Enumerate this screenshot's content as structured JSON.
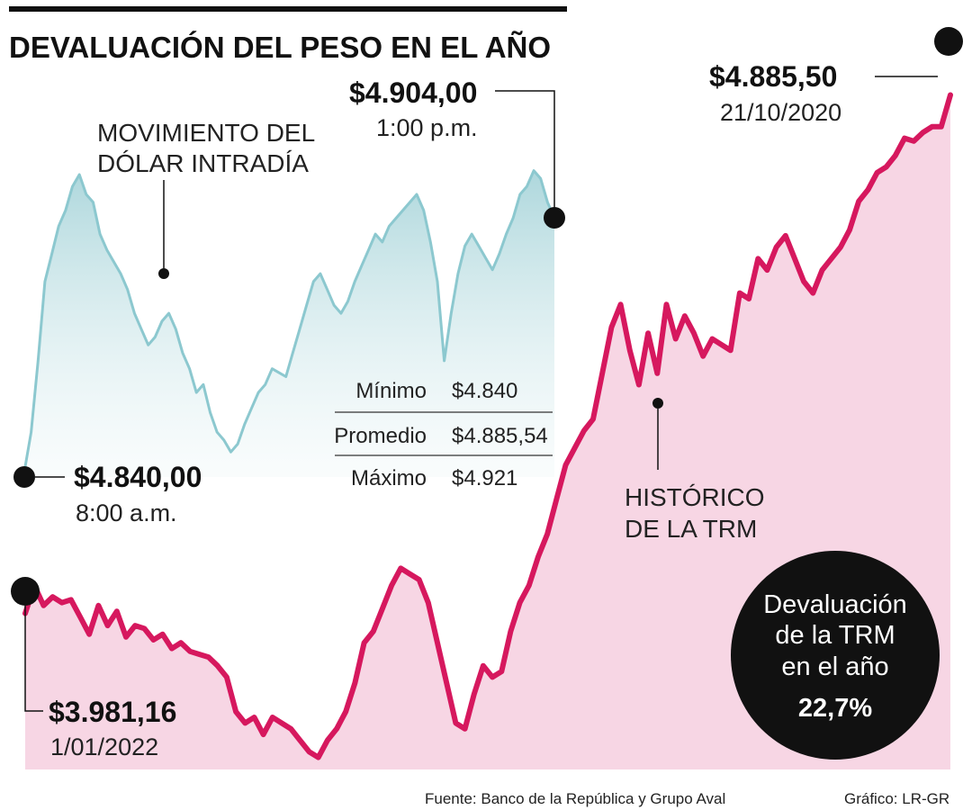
{
  "title": "DEVALUACIÓN DEL PESO EN EL AÑO",
  "colors": {
    "trm_line": "#d6185e",
    "trm_fill": "#f7d6e4",
    "intraday_line": "#8cc8cf",
    "intraday_fill_top": "#bfe0e3",
    "accent_dark": "#111111"
  },
  "intraday": {
    "label_line1": "MOVIMIENTO DEL",
    "label_line2": "DÓLAR INTRADÍA",
    "start": {
      "value": "$4.840,00",
      "time": "8:00 a.m."
    },
    "end": {
      "value": "$4.904,00",
      "time": "1:00 p.m."
    },
    "stats": [
      {
        "label": "Mínimo",
        "value": "$4.840"
      },
      {
        "label": "Promedio",
        "value": "$4.885,54"
      },
      {
        "label": "Máximo",
        "value": "$4.921"
      }
    ]
  },
  "trm": {
    "label_line1": "HISTÓRICO",
    "label_line2": "DE LA TRM",
    "start": {
      "value": "$3.981,16",
      "date": "1/01/2022"
    },
    "end": {
      "value": "$4.885,50",
      "date": "21/10/2020"
    }
  },
  "devaluation": {
    "line1": "Devaluación",
    "line2": "de la TRM",
    "line3": "en el año",
    "value": "22,7%"
  },
  "footer": {
    "source": "Fuente: Banco de la República y Grupo Aval",
    "credit": "Gráfico: LR-GR"
  },
  "chart_data": [
    {
      "type": "area",
      "name": "intraday",
      "x_start": "8:00 a.m.",
      "x_end": "1:00 p.m.",
      "ylim": [
        4838,
        4925
      ],
      "values": [
        4840,
        4850,
        4868,
        4888,
        4895,
        4902,
        4906,
        4912,
        4915,
        4910,
        4908,
        4900,
        4896,
        4893,
        4890,
        4886,
        4880,
        4876,
        4872,
        4874,
        4878,
        4880,
        4876,
        4870,
        4866,
        4860,
        4862,
        4855,
        4850,
        4848,
        4845,
        4847,
        4852,
        4856,
        4860,
        4862,
        4866,
        4865,
        4864,
        4870,
        4876,
        4882,
        4888,
        4890,
        4886,
        4882,
        4880,
        4883,
        4888,
        4892,
        4896,
        4900,
        4898,
        4902,
        4904,
        4906,
        4908,
        4910,
        4906,
        4898,
        4888,
        4868,
        4880,
        4890,
        4897,
        4900,
        4897,
        4894,
        4891,
        4895,
        4900,
        4904,
        4910,
        4912,
        4916,
        4914,
        4908,
        4904
      ]
    },
    {
      "type": "area",
      "name": "trm",
      "x_start": "1/01/2022",
      "x_end": "21/10/2020",
      "ylim": [
        3720,
        4960
      ],
      "values": [
        3981.16,
        4030,
        3995,
        4010,
        4000,
        4005,
        3975,
        3945,
        3995,
        3960,
        3985,
        3940,
        3960,
        3955,
        3935,
        3945,
        3920,
        3930,
        3915,
        3910,
        3905,
        3890,
        3870,
        3810,
        3790,
        3800,
        3770,
        3800,
        3790,
        3780,
        3760,
        3740,
        3730,
        3760,
        3780,
        3810,
        3860,
        3930,
        3950,
        3990,
        4030,
        4060,
        4050,
        4040,
        4000,
        3930,
        3860,
        3790,
        3780,
        3840,
        3890,
        3870,
        3880,
        3950,
        4000,
        4030,
        4080,
        4120,
        4180,
        4240,
        4270,
        4300,
        4320,
        4400,
        4480,
        4520,
        4440,
        4380,
        4470,
        4400,
        4520,
        4460,
        4500,
        4470,
        4430,
        4460,
        4450,
        4440,
        4540,
        4530,
        4600,
        4580,
        4620,
        4640,
        4600,
        4560,
        4540,
        4580,
        4600,
        4620,
        4650,
        4700,
        4720,
        4750,
        4760,
        4780,
        4810,
        4805,
        4820,
        4830,
        4830,
        4885.5
      ]
    }
  ]
}
